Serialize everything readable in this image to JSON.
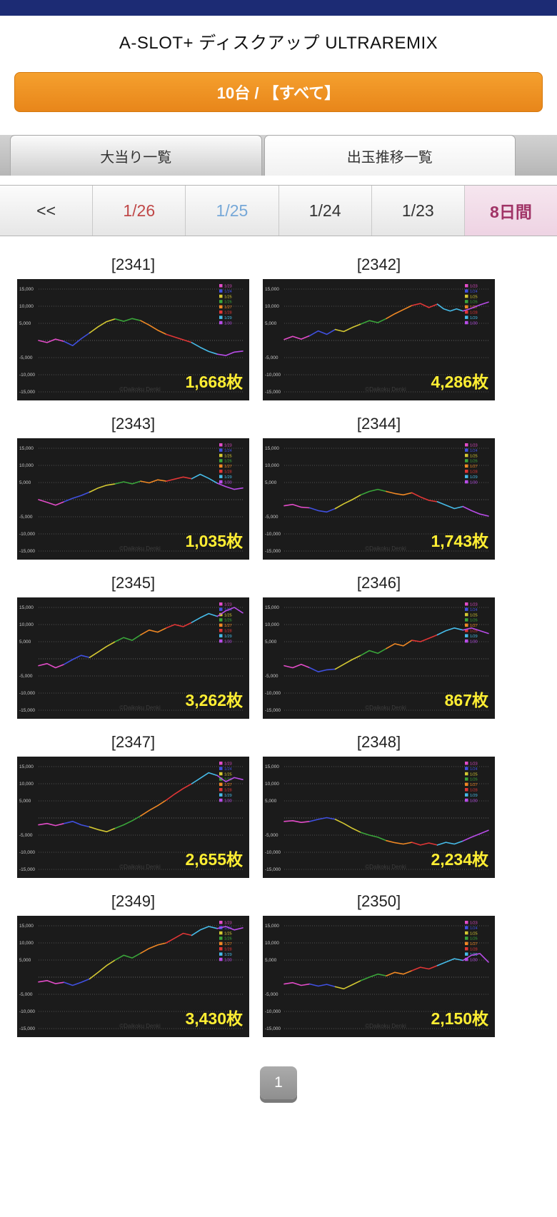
{
  "header": {
    "title": "A-SLOT+ ディスクアップ ULTRAREMIX"
  },
  "filter_button": {
    "label": "10台 / 【すべて】"
  },
  "tabs": [
    {
      "label": "大当り一覧",
      "active": false
    },
    {
      "label": "出玉推移一覧",
      "active": true
    }
  ],
  "date_nav": [
    {
      "label": "<<",
      "color": "#333333",
      "selected": false
    },
    {
      "label": "1/26",
      "color": "#c04848",
      "selected": false
    },
    {
      "label": "1/25",
      "color": "#76a8d8",
      "selected": false
    },
    {
      "label": "1/24",
      "color": "#333333",
      "selected": false
    },
    {
      "label": "1/23",
      "color": "#333333",
      "selected": false
    },
    {
      "label": "8日間",
      "color": "#a03366",
      "selected": true
    }
  ],
  "chart_data": {
    "type": "line",
    "ylim": [
      -15000,
      15000
    ],
    "panel_bg": "#1b1b1b",
    "count_color": "#ffee33",
    "watermark": "©Daikoku Denki",
    "y_ticks": [
      {
        "label": "15,000",
        "v": 15
      },
      {
        "label": "10,000",
        "v": 10
      },
      {
        "label": "5,000",
        "v": 5
      },
      {
        "label": "-5,000",
        "v": -5
      },
      {
        "label": "-10,000",
        "v": -10
      },
      {
        "label": "-15,000",
        "v": -15
      }
    ],
    "legend": [
      {
        "label": "1/23",
        "color": "#e24cc8"
      },
      {
        "label": "1/24",
        "color": "#4050e0"
      },
      {
        "label": "1/25",
        "color": "#d4c832"
      },
      {
        "label": "1/26",
        "color": "#3aa53a"
      },
      {
        "label": "1/27",
        "color": "#f08824"
      },
      {
        "label": "1/28",
        "color": "#e03636"
      },
      {
        "label": "1/29",
        "color": "#46bbe8"
      },
      {
        "label": "1/30",
        "color": "#b84ce8"
      }
    ],
    "machines": [
      {
        "id": "[2341]",
        "count": "1,668枚",
        "days": [
          [
            0,
            -0.6,
            0.4,
            -0.3
          ],
          [
            -0.3,
            -1.5,
            0.5,
            2.2
          ],
          [
            2.2,
            4,
            5.5,
            6.3
          ],
          [
            6.3,
            5.6,
            6.4,
            5.8
          ],
          [
            5.8,
            4.5,
            3,
            1.8
          ],
          [
            1.8,
            1,
            0.2,
            -0.6
          ],
          [
            -0.6,
            -2,
            -3.2,
            -4
          ],
          [
            -4,
            -4.4,
            -3.4,
            -3.1
          ]
        ]
      },
      {
        "id": "[2342]",
        "count": "4,286枚",
        "days": [
          [
            0.3,
            1.2,
            0.4,
            1.4
          ],
          [
            1.4,
            2.8,
            1.8,
            3.2
          ],
          [
            3.2,
            2.6,
            3.8,
            4.8
          ],
          [
            4.8,
            5.8,
            5.2,
            6.4
          ],
          [
            6.4,
            7.8,
            9,
            10.2
          ],
          [
            10.2,
            10.8,
            9.6,
            10.6
          ],
          [
            10.6,
            9.2,
            8.6,
            9.2,
            8.6
          ],
          [
            8.6,
            9.4,
            10.4,
            11.2
          ]
        ]
      },
      {
        "id": "[2343]",
        "count": "1,035枚",
        "days": [
          [
            0,
            -0.8,
            -1.6,
            -0.6
          ],
          [
            -0.6,
            0.4,
            1.2,
            2.2
          ],
          [
            2.2,
            3.4,
            4.2,
            4.6
          ],
          [
            4.6,
            5.2,
            4.6,
            5.4
          ],
          [
            5.4,
            4.9,
            5.8,
            5.4
          ],
          [
            5.4,
            6,
            6.6,
            6.1
          ],
          [
            6.1,
            7.4,
            6.2,
            4.8
          ],
          [
            4.8,
            3.8,
            3,
            3.4
          ]
        ]
      },
      {
        "id": "[2344]",
        "count": "1,743枚",
        "days": [
          [
            -1.8,
            -1.4,
            -2.2,
            -2.4
          ],
          [
            -2.4,
            -3.2,
            -3.6,
            -2.6
          ],
          [
            -2.6,
            -1.2,
            0,
            1.4
          ],
          [
            1.4,
            2.4,
            3,
            2.4
          ],
          [
            2.4,
            1.8,
            1.4,
            2
          ],
          [
            2,
            0.8,
            -0.2,
            -0.6
          ],
          [
            -0.6,
            -1.6,
            -2.6,
            -2
          ],
          [
            -2,
            -3.2,
            -4.2,
            -4.8
          ]
        ]
      },
      {
        "id": "[2345]",
        "count": "3,262枚",
        "days": [
          [
            -2,
            -1.4,
            -2.6,
            -1.6
          ],
          [
            -1.6,
            -0.2,
            1,
            0.4
          ],
          [
            0.4,
            2,
            3.6,
            5
          ],
          [
            5,
            6.2,
            5.4,
            7
          ],
          [
            7,
            8.4,
            7.8,
            9
          ],
          [
            9,
            10,
            9.4,
            10.6
          ],
          [
            10.6,
            12,
            13.2,
            12.4
          ],
          [
            12.4,
            14,
            15,
            13.4
          ]
        ]
      },
      {
        "id": "[2346]",
        "count": "867枚",
        "days": [
          [
            -2,
            -2.6,
            -1.6,
            -2.6
          ],
          [
            -2.6,
            -3.8,
            -3.2,
            -3
          ],
          [
            -3,
            -1.6,
            -0.2,
            1
          ],
          [
            1,
            2.4,
            1.6,
            3
          ],
          [
            3,
            4.4,
            3.8,
            5.4
          ],
          [
            5.4,
            5,
            6,
            7
          ],
          [
            7,
            8.2,
            9,
            8.4
          ],
          [
            8.4,
            9,
            8.2,
            7.4
          ]
        ]
      },
      {
        "id": "[2347]",
        "count": "2,655枚",
        "days": [
          [
            -2,
            -1.6,
            -2.2,
            -1.6
          ],
          [
            -1.6,
            -1,
            -2,
            -2.6
          ],
          [
            -2.6,
            -3.4,
            -4,
            -3
          ],
          [
            -3,
            -2,
            -0.8,
            0.6
          ],
          [
            0.6,
            2.2,
            3.6,
            5.2
          ],
          [
            5.2,
            7,
            8.6,
            10
          ],
          [
            10,
            11.6,
            13.2,
            12.4
          ],
          [
            12.4,
            10.6,
            11.8,
            11.2
          ]
        ]
      },
      {
        "id": "[2348]",
        "count": "2,234枚",
        "days": [
          [
            -1,
            -0.8,
            -1.3,
            -1
          ],
          [
            -1,
            -0.4,
            0.1,
            -0.4
          ],
          [
            -0.4,
            -1.6,
            -3,
            -4.2
          ],
          [
            -4.2,
            -5,
            -5.6,
            -6.6
          ],
          [
            -6.6,
            -7.2,
            -7.6,
            -7.1
          ],
          [
            -7.1,
            -7.9,
            -7.3,
            -7.9
          ],
          [
            -7.9,
            -7.1,
            -7.6,
            -6.7
          ],
          [
            -6.7,
            -5.6,
            -4.6,
            -3.6
          ]
        ]
      },
      {
        "id": "[2349]",
        "count": "3,430枚",
        "days": [
          [
            -1.4,
            -1,
            -1.9,
            -1.5
          ],
          [
            -1.5,
            -2.4,
            -1.5,
            -0.5
          ],
          [
            -0.5,
            1.4,
            3.4,
            5
          ],
          [
            5,
            6.4,
            5.6,
            7
          ],
          [
            7,
            8.4,
            9.4,
            10
          ],
          [
            10,
            11.4,
            12.8,
            12.2
          ],
          [
            12.2,
            13.8,
            14.8,
            14.2
          ],
          [
            14.2,
            14.8,
            13.8,
            14.4
          ]
        ]
      },
      {
        "id": "[2350]",
        "count": "2,150枚",
        "days": [
          [
            -2,
            -1.6,
            -2.4,
            -2
          ],
          [
            -2,
            -2.6,
            -2.1,
            -2.8
          ],
          [
            -2.8,
            -3.4,
            -2.2,
            -1
          ],
          [
            -1,
            0,
            0.9,
            0.4
          ],
          [
            0.4,
            1.4,
            0.9,
            1.9
          ],
          [
            1.9,
            2.9,
            2.4,
            3.4
          ],
          [
            3.4,
            4.4,
            5.4,
            4.9
          ],
          [
            4.9,
            6.4,
            6.9,
            4.4
          ]
        ]
      }
    ]
  },
  "pagination": {
    "current": "1"
  }
}
